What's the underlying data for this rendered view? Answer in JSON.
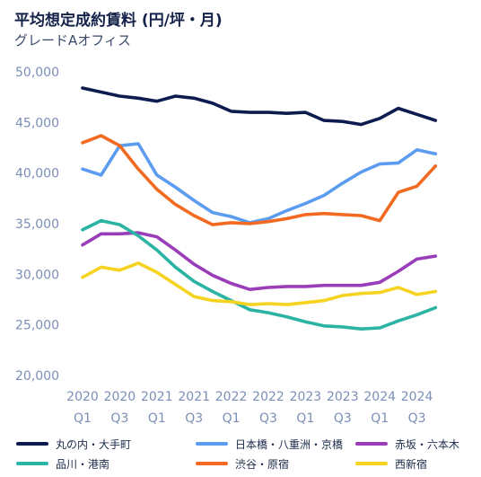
{
  "chart_data": {
    "type": "line",
    "title": "平均想定成約賃料 (円/坪・月)",
    "subtitle": "グレードAオフィス",
    "xlabel": "",
    "ylabel": "",
    "ylim": [
      20000,
      50000
    ],
    "yticks": [
      "20,000",
      "25,000",
      "30,000",
      "35,000",
      "40,000",
      "45,000",
      "50,000"
    ],
    "x_tick_labels": [
      {
        "year": "2020",
        "q": "Q1"
      },
      {
        "year": "2020",
        "q": "Q3"
      },
      {
        "year": "2021",
        "q": "Q1"
      },
      {
        "year": "2021",
        "q": "Q3"
      },
      {
        "year": "2022",
        "q": "Q1"
      },
      {
        "year": "2022",
        "q": "Q3"
      },
      {
        "year": "2023",
        "q": "Q1"
      },
      {
        "year": "2023",
        "q": "Q3"
      },
      {
        "year": "2024",
        "q": "Q1"
      },
      {
        "year": "2024",
        "q": "Q3"
      }
    ],
    "x": [
      "2020 Q1",
      "2020 Q2",
      "2020 Q3",
      "2020 Q4",
      "2021 Q1",
      "2021 Q2",
      "2021 Q3",
      "2021 Q4",
      "2022 Q1",
      "2022 Q2",
      "2022 Q3",
      "2022 Q4",
      "2023 Q1",
      "2023 Q2",
      "2023 Q3",
      "2023 Q4",
      "2024 Q1",
      "2024 Q2",
      "2024 Q3",
      "2024 Q4"
    ],
    "grid": false,
    "legend_position": "bottom",
    "series": [
      {
        "name": "丸の内・大手町",
        "color": "#0d1b4f",
        "values": [
          48400,
          48000,
          47600,
          47400,
          47100,
          47600,
          47400,
          46900,
          46100,
          46000,
          46000,
          45900,
          46000,
          45200,
          45100,
          44800,
          45400,
          46400,
          45800,
          45200
        ]
      },
      {
        "name": "日本橋・八重洲・京橋",
        "color": "#5b9cf0",
        "values": [
          40400,
          39800,
          42700,
          42900,
          39800,
          38600,
          37300,
          36100,
          35700,
          35100,
          35500,
          36300,
          37000,
          37800,
          39000,
          40100,
          40900,
          41000,
          42300,
          41900
        ]
      },
      {
        "name": "赤坂・六本木",
        "color": "#9a3db8",
        "values": [
          32900,
          34000,
          34000,
          34100,
          33700,
          32400,
          31000,
          29900,
          29100,
          28500,
          28700,
          28800,
          28800,
          28900,
          28900,
          28900,
          29200,
          30300,
          31500,
          31800
        ]
      },
      {
        "name": "品川・港南",
        "color": "#2bb3a3",
        "values": [
          34400,
          35300,
          34900,
          33800,
          32400,
          30700,
          29300,
          28300,
          27400,
          26500,
          26200,
          25800,
          25300,
          24900,
          24800,
          24600,
          24700,
          25400,
          26000,
          26700
        ]
      },
      {
        "name": "渋谷・原宿",
        "color": "#f26a21",
        "values": [
          43000,
          43700,
          42700,
          40400,
          38400,
          36900,
          35800,
          34900,
          35100,
          35000,
          35200,
          35500,
          35900,
          36000,
          35900,
          35800,
          35300,
          38100,
          38700,
          40700
        ]
      },
      {
        "name": "西新宿",
        "color": "#f5d320",
        "values": [
          29700,
          30700,
          30400,
          31100,
          30200,
          29000,
          27800,
          27400,
          27300,
          27000,
          27100,
          27000,
          27200,
          27400,
          27900,
          28100,
          28200,
          28700,
          28000,
          28300
        ]
      }
    ]
  }
}
